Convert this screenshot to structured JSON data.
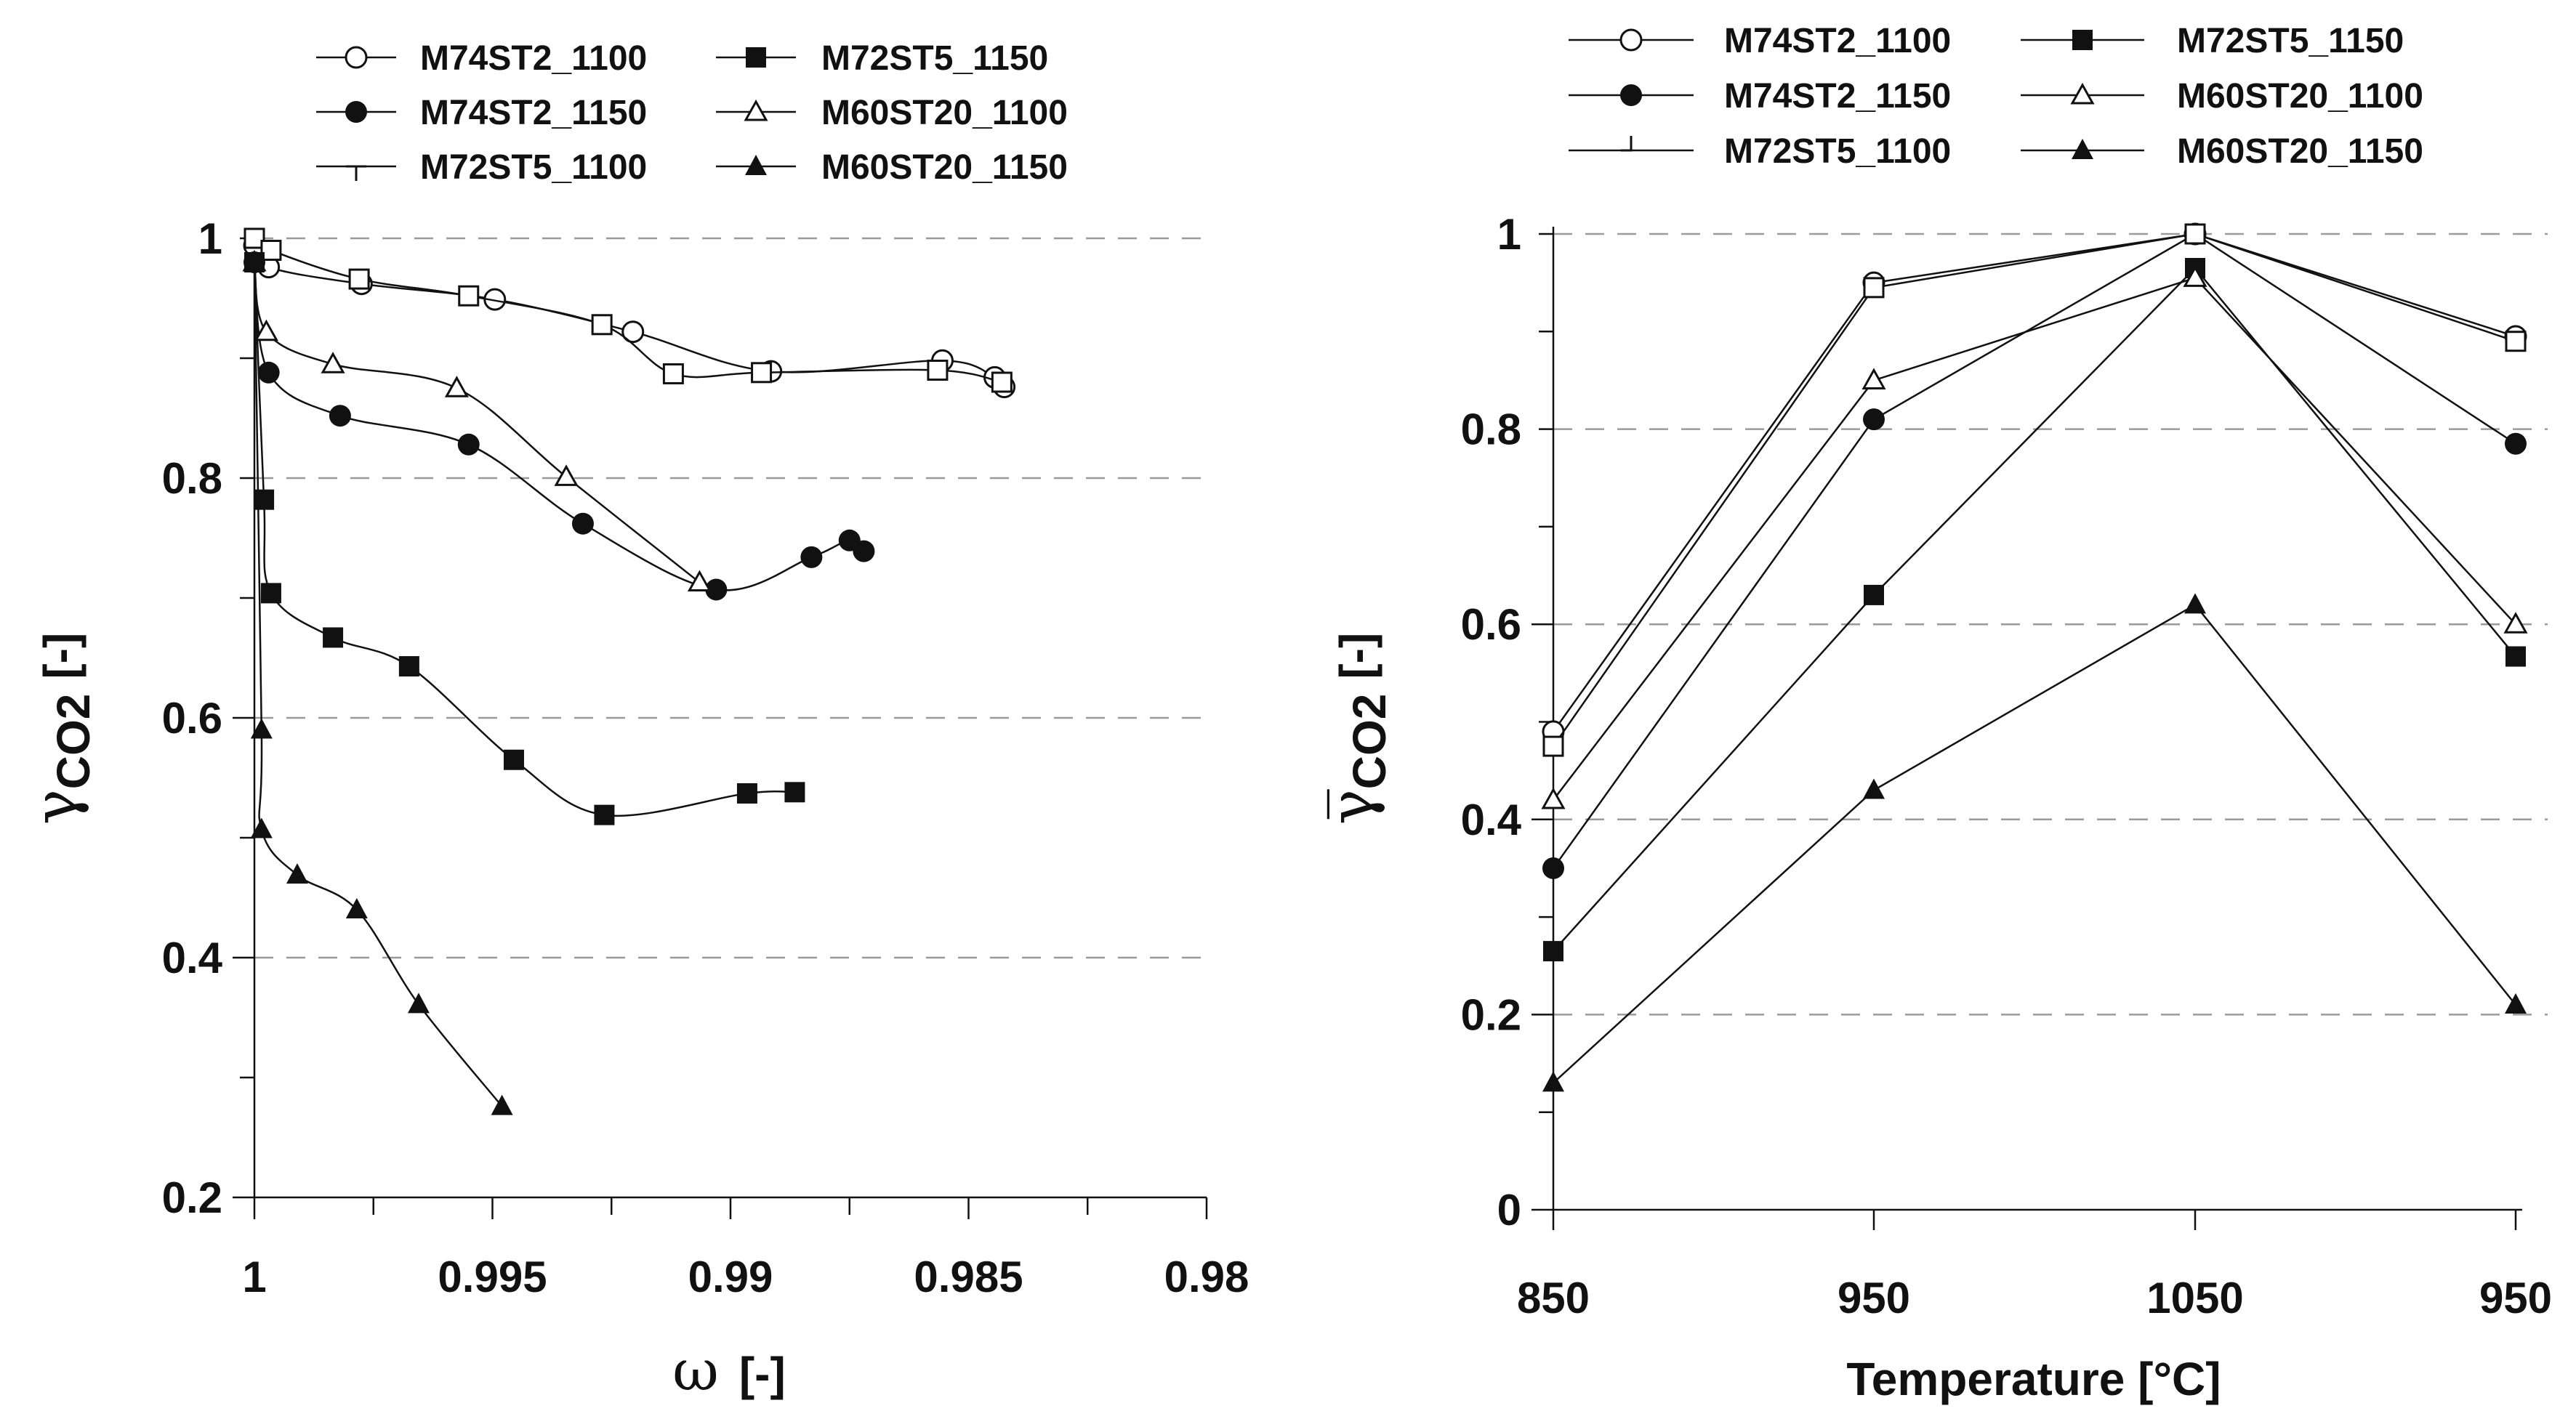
{
  "figure": {
    "left_ylabel_symbol": "γ",
    "left_ylabel_sub": "CO2",
    "left_ylabel_unit": "[-]",
    "left_xlabel_symbol": "ω",
    "left_xlabel_unit": "[-]",
    "right_ylabel_symbol": "γ̅",
    "right_ylabel_sub": "CO2",
    "right_ylabel_unit": "[-]",
    "right_xlabel": "Temperature [°C]"
  },
  "chart_data": [
    {
      "type": "line",
      "title": "",
      "xlabel": "ω [-]",
      "ylabel": "γCO2 [-]",
      "xlim": [
        1.0,
        0.98
      ],
      "ylim": [
        0.2,
        1.0
      ],
      "x_ticks": [
        1,
        0.995,
        0.99,
        0.985,
        0.98
      ],
      "x_tick_labels": [
        "1",
        "0.995",
        "0.99",
        "0.985",
        "0.98"
      ],
      "y_ticks": [
        0.2,
        0.4,
        0.6,
        0.8,
        1
      ],
      "y_tick_labels": [
        "0.2",
        "0.4",
        "0.6",
        "0.8",
        "1"
      ],
      "grid": "horizontal dashed",
      "legend_position": "top",
      "series": [
        {
          "name": "M74ST2_1100",
          "marker": "circle-open",
          "x": [
            1.0,
            0.9997,
            0.99775,
            0.99495,
            0.99205,
            0.98915,
            0.98555,
            0.98445,
            0.98425
          ],
          "y": [
            0.994,
            0.976,
            0.962,
            0.949,
            0.922,
            0.889,
            0.898,
            0.884,
            0.876
          ]
        },
        {
          "name": "M74ST2_1150",
          "marker": "circle-filled",
          "x": [
            1.0,
            0.9997,
            0.9982,
            0.9955,
            0.9931,
            0.9903,
            0.9883,
            0.9875,
            0.9872
          ],
          "y": [
            0.98,
            0.888,
            0.852,
            0.828,
            0.762,
            0.707,
            0.734,
            0.748,
            0.739
          ]
        },
        {
          "name": "M72ST5_1100",
          "marker": "open-square",
          "x": [
            1.0,
            0.99965,
            0.9978,
            0.9955,
            0.9927,
            0.9912,
            0.98935,
            0.98565,
            0.9843
          ],
          "y": [
            1.0,
            0.99,
            0.966,
            0.952,
            0.928,
            0.887,
            0.888,
            0.89,
            0.88
          ]
        },
        {
          "name": "M72ST5_1150",
          "marker": "square-filled",
          "x": [
            1.0,
            0.9998,
            0.99965,
            0.99835,
            0.99675,
            0.99455,
            0.99265,
            0.98965,
            0.98865
          ],
          "y": [
            0.98,
            0.782,
            0.704,
            0.667,
            0.643,
            0.565,
            0.519,
            0.537,
            0.538
          ]
        },
        {
          "name": "M60ST20_1100",
          "marker": "triangle-open",
          "x": [
            1.0,
            0.99975,
            0.99835,
            0.99575,
            0.99345,
            0.99065
          ],
          "y": [
            0.98,
            0.922,
            0.895,
            0.875,
            0.801,
            0.713
          ]
        },
        {
          "name": "M60ST20_1150",
          "marker": "triangle-filled",
          "x": [
            1.0,
            0.99985,
            0.99985,
            0.9991,
            0.99785,
            0.99655,
            0.9948
          ],
          "y": [
            0.98,
            0.59,
            0.507,
            0.469,
            0.44,
            0.361,
            0.276
          ]
        }
      ]
    },
    {
      "type": "line",
      "title": "",
      "xlabel": "Temperature [°C]",
      "ylabel": "γ̅CO2 [-]",
      "categories": [
        "850",
        "950",
        "1050",
        "950"
      ],
      "ylim": [
        0,
        1.0
      ],
      "y_ticks": [
        0,
        0.2,
        0.4,
        0.6,
        0.8,
        1
      ],
      "y_tick_labels": [
        "0",
        "0.2",
        "0.4",
        "0.6",
        "0.8",
        "1"
      ],
      "grid": "horizontal dashed",
      "legend_position": "top",
      "series": [
        {
          "name": "M74ST2_1100",
          "marker": "circle-open",
          "values": [
            0.49,
            0.95,
            1.0,
            0.895
          ]
        },
        {
          "name": "M74ST2_1150",
          "marker": "circle-filled",
          "values": [
            0.35,
            0.81,
            1.0,
            0.785
          ]
        },
        {
          "name": "M72ST5_1100",
          "marker": "open-square",
          "values": [
            0.475,
            0.945,
            1.0,
            0.89
          ]
        },
        {
          "name": "M72ST5_1150",
          "marker": "square-filled",
          "values": [
            0.265,
            0.63,
            0.965,
            0.567
          ]
        },
        {
          "name": "M60ST20_1100",
          "marker": "triangle-open",
          "values": [
            0.42,
            0.85,
            0.955,
            0.6
          ]
        },
        {
          "name": "M60ST20_1150",
          "marker": "triangle-filled",
          "values": [
            0.13,
            0.43,
            0.62,
            0.21
          ]
        }
      ]
    }
  ]
}
